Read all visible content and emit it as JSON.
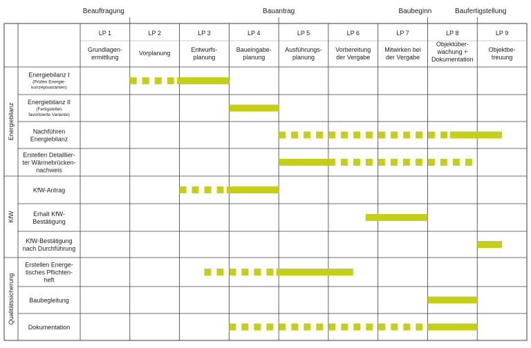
{
  "milestones": [
    {
      "label": "Beauftragung",
      "at": 1
    },
    {
      "label": "Bauantrag",
      "at": 4
    },
    {
      "label": "Baubeginn",
      "at": 7
    },
    {
      "label": "Baufertigstellung",
      "at": 8
    }
  ],
  "phases": [
    {
      "code": "LP 1",
      "desc": [
        "Grundlagen-",
        "ermittlung"
      ]
    },
    {
      "code": "LP 2",
      "desc": [
        "Vorplanung"
      ]
    },
    {
      "code": "LP 3",
      "desc": [
        "Entwurfs-",
        "planung"
      ]
    },
    {
      "code": "LP 4",
      "desc": [
        "Baueingabe-",
        "planung"
      ]
    },
    {
      "code": "LP 5",
      "desc": [
        "Ausführungs-",
        "planung"
      ]
    },
    {
      "code": "LP 6",
      "desc": [
        "Vorbereitung",
        "der Vergabe"
      ]
    },
    {
      "code": "LP 7",
      "desc": [
        "Mitwirken bei",
        "der Vergabe"
      ]
    },
    {
      "code": "LP 8",
      "desc": [
        "Objektüber-",
        "wachung +",
        "Dokumentation"
      ]
    },
    {
      "code": "LP 9",
      "desc": [
        "Objektbe-",
        "treuung"
      ]
    }
  ],
  "groups": [
    {
      "label": "Energiebilanz",
      "rows": [
        0,
        3
      ]
    },
    {
      "label": "KfW",
      "rows": [
        4,
        6
      ]
    },
    {
      "label": "Qualitätssicherung",
      "rows": [
        7,
        9
      ]
    }
  ],
  "tasks": [
    {
      "lines": [
        "Energiebilanz I"
      ],
      "sub": [
        "(Prüfen Energie-",
        "konzeptvarianten)"
      ],
      "bars": [
        {
          "start": 1.0,
          "end": 1.95,
          "style": "dashed"
        },
        {
          "start": 1.95,
          "end": 3.0,
          "style": "solid"
        }
      ]
    },
    {
      "lines": [
        "Energiebilanz II"
      ],
      "sub": [
        "(Fertigstellen",
        "favorisierte Variante)"
      ],
      "bars": [
        {
          "start": 3.0,
          "end": 4.0,
          "style": "solid"
        }
      ]
    },
    {
      "lines": [
        "Nachführen",
        "Energiebilanz"
      ],
      "sub": [],
      "bars": [
        {
          "start": 4.0,
          "end": 7.45,
          "style": "dashed"
        },
        {
          "start": 7.45,
          "end": 8.5,
          "style": "solid"
        }
      ]
    },
    {
      "lines": [
        "Erstellen Detaillier-",
        "ter Wärmebrücken-",
        "nachweis"
      ],
      "sub": [],
      "bars": [
        {
          "start": 4.0,
          "end": 5.0,
          "style": "solid"
        },
        {
          "start": 5.0,
          "end": 8.0,
          "style": "dashed"
        }
      ]
    },
    {
      "lines": [
        "KfW-Antrag"
      ],
      "sub": [],
      "bars": [
        {
          "start": 2.0,
          "end": 2.95,
          "style": "dashed"
        },
        {
          "start": 2.95,
          "end": 4.0,
          "style": "solid"
        }
      ]
    },
    {
      "lines": [
        "Erhalt KfW-",
        "Bestätigung"
      ],
      "sub": [],
      "bars": [
        {
          "start": 5.75,
          "end": 7.0,
          "style": "solid"
        }
      ]
    },
    {
      "lines": [
        "KfW-Bestätigung",
        "nach Durchführung"
      ],
      "sub": [],
      "bars": [
        {
          "start": 8.0,
          "end": 8.5,
          "style": "solid"
        }
      ]
    },
    {
      "lines": [
        "Erstellen Energe-",
        "tisches Pflichten-",
        "heft"
      ],
      "sub": [],
      "bars": [
        {
          "start": 2.5,
          "end": 3.95,
          "style": "dashed"
        },
        {
          "start": 3.95,
          "end": 5.5,
          "style": "solid"
        }
      ]
    },
    {
      "lines": [
        "Baubegleitung"
      ],
      "sub": [],
      "bars": [
        {
          "start": 7.0,
          "end": 8.0,
          "style": "solid"
        }
      ]
    },
    {
      "lines": [
        "Dokumentation"
      ],
      "sub": [],
      "bars": [
        {
          "start": 3.0,
          "end": 7.0,
          "style": "dashed"
        },
        {
          "start": 7.0,
          "end": 8.0,
          "style": "solid"
        }
      ]
    }
  ],
  "colors": {
    "bar": "#c5cf16",
    "grid": "#3a3a3a",
    "text": "#1a1a1a"
  }
}
